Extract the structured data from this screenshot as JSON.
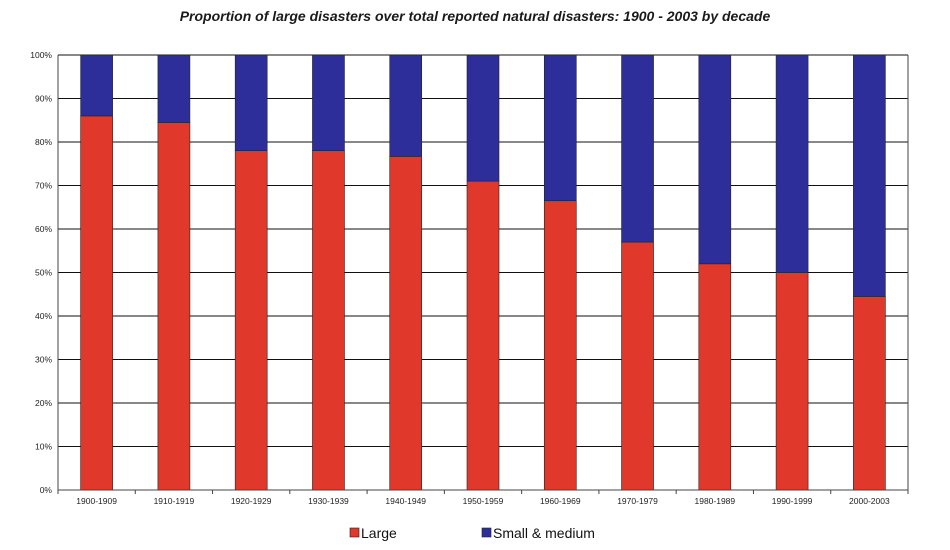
{
  "chart_data": {
    "type": "bar",
    "stacked": true,
    "title": "Proportion of large disasters over total reported natural disasters: 1900 - 2003 by decade",
    "categories": [
      "1900-1909",
      "1910-1919",
      "1920-1929",
      "1930-1939",
      "1940-1949",
      "1950-1959",
      "1960-1969",
      "1970-1979",
      "1980-1989",
      "1990-1999",
      "2000-2003"
    ],
    "series": [
      {
        "name": "Large",
        "color": "#e0382b",
        "values": [
          86,
          84.5,
          78,
          78,
          76.7,
          71,
          66.5,
          57,
          52,
          50,
          44.5
        ]
      },
      {
        "name": "Small & medium",
        "color": "#2e2e9a",
        "values": [
          14,
          15.5,
          22,
          22,
          23.3,
          29,
          33.5,
          43,
          48,
          50,
          55.5
        ]
      }
    ],
    "ylim": [
      0,
      100
    ],
    "yticks": [
      "0%",
      "10%",
      "20%",
      "30%",
      "40%",
      "50%",
      "60%",
      "70%",
      "80%",
      "90%",
      "100%"
    ],
    "grid": true,
    "legend_position": "bottom"
  }
}
